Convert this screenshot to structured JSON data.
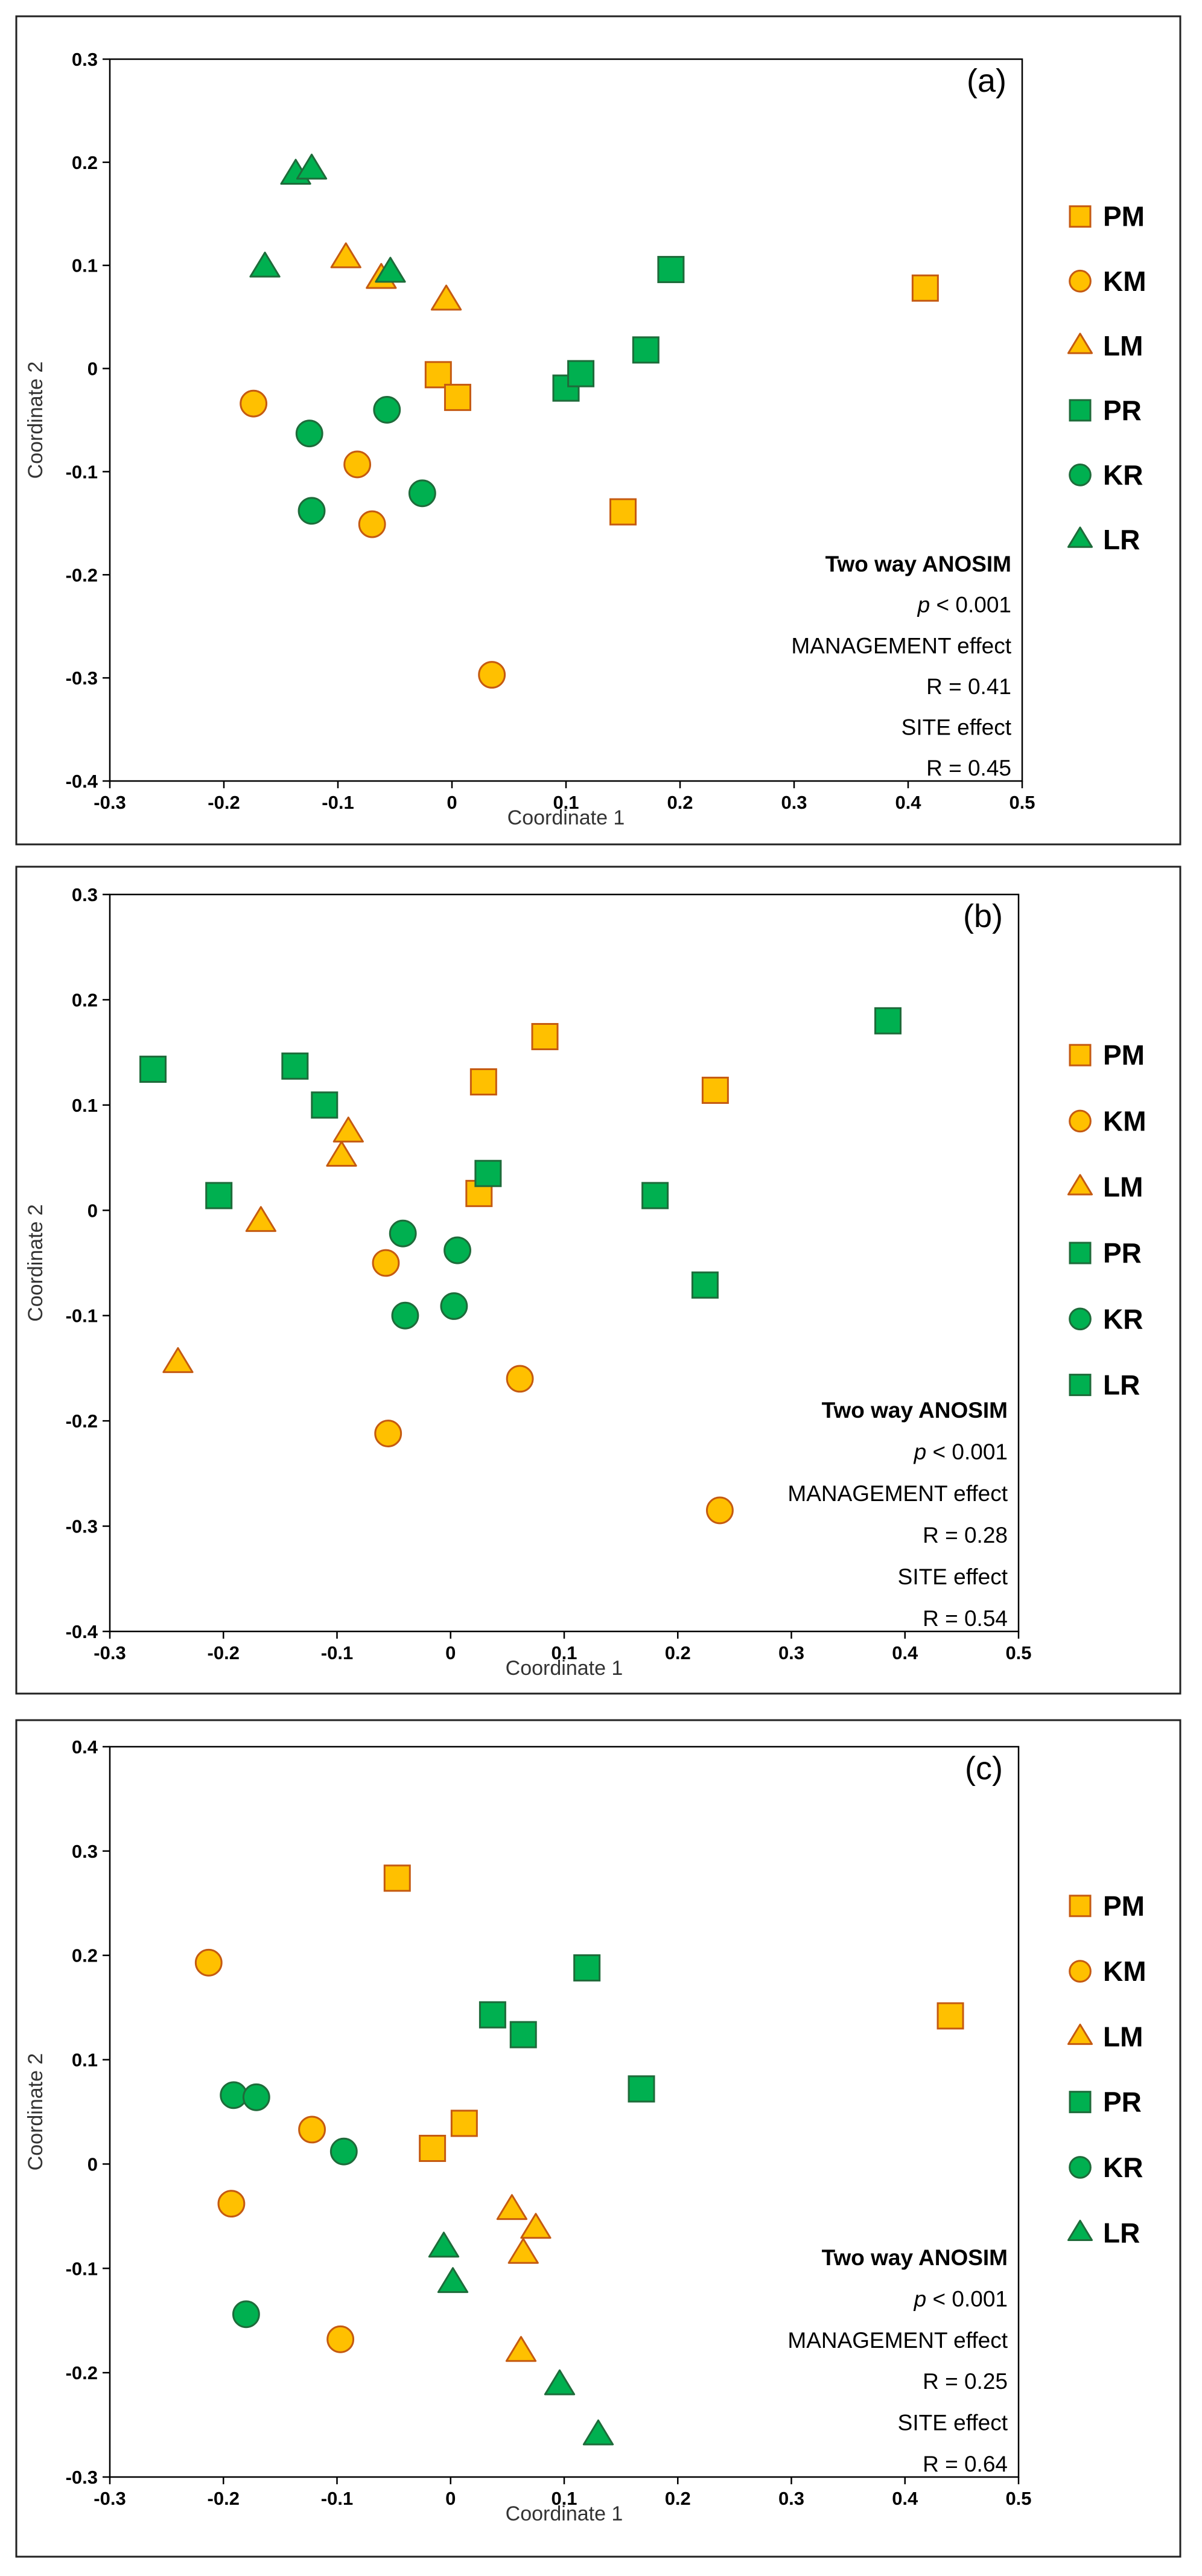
{
  "style": {
    "orange_fill": "#FFC000",
    "orange_stroke": "#C55A11",
    "green_fill": "#00B050",
    "green_stroke": "#1E6B3A"
  },
  "chart_data": [
    {
      "type": "scatter",
      "panel": "(a)",
      "xlabel": "Coordinate 1",
      "ylabel": "Coordinate 2",
      "xlim": [
        -0.3,
        0.5
      ],
      "ylim": [
        -0.4,
        0.3
      ],
      "xticks": [
        -0.3,
        -0.2,
        -0.1,
        0,
        0.1,
        0.2,
        0.3,
        0.4,
        0.5
      ],
      "xtick_labels": [
        "-0.3",
        "-0.2",
        "-0.1",
        "0",
        "0.1",
        "0.2",
        "0.3",
        "0.4",
        "0.5"
      ],
      "yticks": [
        -0.4,
        -0.3,
        -0.2,
        -0.1,
        0,
        0.1,
        0.2,
        0.3
      ],
      "ytick_labels": [
        "-0.4",
        "-0.3",
        "-0.2",
        "-0.1",
        "0",
        "0.1",
        "0.2",
        "0.3"
      ],
      "grid": false,
      "legend_position": "right",
      "annotation": {
        "title": "Two way ANOSIM",
        "p_symbol": "p",
        "p_rest": " < 0.001",
        "line3": "MANAGEMENT effect",
        "line4": "R = 0.41",
        "line5": "SITE effect",
        "line6": "R = 0.45"
      },
      "series": [
        {
          "name": "PM",
          "marker": "square",
          "color": "orange",
          "points": [
            [
              -0.012,
              -0.006
            ],
            [
              0.005,
              -0.028
            ],
            [
              0.15,
              -0.139
            ],
            [
              0.415,
              0.078
            ]
          ]
        },
        {
          "name": "KM",
          "marker": "circle",
          "color": "orange",
          "points": [
            [
              -0.174,
              -0.034
            ],
            [
              -0.083,
              -0.093
            ],
            [
              -0.07,
              -0.151
            ],
            [
              0.035,
              -0.297
            ]
          ]
        },
        {
          "name": "LM",
          "marker": "triangle",
          "color": "orange",
          "points": [
            [
              -0.093,
              0.107
            ],
            [
              -0.062,
              0.087
            ],
            [
              -0.005,
              0.066
            ]
          ]
        },
        {
          "name": "PR",
          "marker": "square",
          "color": "green",
          "points": [
            [
              0.1,
              -0.019
            ],
            [
              0.113,
              -0.005
            ],
            [
              0.17,
              0.018
            ],
            [
              0.192,
              0.096
            ]
          ]
        },
        {
          "name": "KR",
          "marker": "circle",
          "color": "green",
          "points": [
            [
              -0.125,
              -0.063
            ],
            [
              -0.123,
              -0.138
            ],
            [
              -0.057,
              -0.04
            ],
            [
              -0.026,
              -0.121
            ]
          ]
        },
        {
          "name": "LR",
          "marker": "triangle",
          "color": "green",
          "points": [
            [
              -0.164,
              0.098
            ],
            [
              -0.137,
              0.188
            ],
            [
              -0.123,
              0.193
            ],
            [
              -0.054,
              0.093
            ]
          ]
        }
      ]
    },
    {
      "type": "scatter",
      "panel": "(b)",
      "xlabel": "Coordinate 1",
      "ylabel": "Coordinate 2",
      "xlim": [
        -0.3,
        0.5
      ],
      "ylim": [
        -0.4,
        0.3
      ],
      "xticks": [
        -0.3,
        -0.2,
        -0.1,
        0,
        0.1,
        0.2,
        0.3,
        0.4,
        0.5
      ],
      "xtick_labels": [
        "-0.3",
        "-0.2",
        "-0.1",
        "0",
        "0.1",
        "0.2",
        "0.3",
        "0.4",
        "0.5"
      ],
      "yticks": [
        -0.4,
        -0.3,
        -0.2,
        -0.1,
        0,
        0.1,
        0.2,
        0.3
      ],
      "ytick_labels": [
        "-0.4",
        "-0.3",
        "-0.2",
        "-0.1",
        "0",
        "0.1",
        "0.2",
        "0.3"
      ],
      "grid": false,
      "legend_position": "right",
      "annotation": {
        "title": "Two way ANOSIM",
        "p_symbol": "p",
        "p_rest": " < 0.001",
        "line3": "MANAGEMENT effect",
        "line4": "R = 0.28",
        "line5": "SITE effect",
        "line6": "R = 0.54"
      },
      "series": [
        {
          "name": "PM",
          "marker": "square",
          "color": "orange",
          "points": [
            [
              0.025,
              0.016
            ],
            [
              0.029,
              0.122
            ],
            [
              0.083,
              0.165
            ],
            [
              0.233,
              0.114
            ]
          ]
        },
        {
          "name": "KM",
          "marker": "circle",
          "color": "orange",
          "points": [
            [
              -0.057,
              -0.05
            ],
            [
              -0.055,
              -0.212
            ],
            [
              0.061,
              -0.16
            ],
            [
              0.237,
              -0.285
            ]
          ]
        },
        {
          "name": "LM",
          "marker": "triangle",
          "color": "orange",
          "points": [
            [
              -0.24,
              -0.145
            ],
            [
              -0.167,
              -0.011
            ],
            [
              -0.096,
              0.051
            ],
            [
              -0.09,
              0.074
            ]
          ]
        },
        {
          "name": "PR",
          "marker": "square",
          "color": "green",
          "points": [
            [
              -0.262,
              0.134
            ],
            [
              -0.204,
              0.014
            ],
            [
              -0.137,
              0.137
            ],
            [
              -0.111,
              0.1
            ],
            [
              0.033,
              0.035
            ],
            [
              0.18,
              0.014
            ],
            [
              0.224,
              -0.071
            ],
            [
              0.385,
              0.18
            ]
          ]
        },
        {
          "name": "KR",
          "marker": "circle",
          "color": "green",
          "points": [
            [
              -0.042,
              -0.022
            ],
            [
              -0.04,
              -0.1
            ],
            [
              0.003,
              -0.091
            ],
            [
              0.006,
              -0.038
            ]
          ]
        },
        {
          "name": "LR",
          "marker": "square",
          "color": "green",
          "points": []
        }
      ]
    },
    {
      "type": "scatter",
      "panel": "(c)",
      "xlabel": "Coordinate 1",
      "ylabel": "Coordinate 2",
      "xlim": [
        -0.3,
        0.5
      ],
      "ylim": [
        -0.3,
        0.4
      ],
      "xticks": [
        -0.3,
        -0.2,
        -0.1,
        0,
        0.1,
        0.2,
        0.3,
        0.4,
        0.5
      ],
      "xtick_labels": [
        "-0.3",
        "-0.2",
        "-0.1",
        "0",
        "0.1",
        "0.2",
        "0.3",
        "0.4",
        "0.5"
      ],
      "yticks": [
        -0.3,
        -0.2,
        -0.1,
        0,
        0.1,
        0.2,
        0.3,
        0.4
      ],
      "ytick_labels": [
        "-0.3",
        "-0.2",
        "-0.1",
        "0",
        "0.1",
        "0.2",
        "0.3",
        "0.4"
      ],
      "grid": false,
      "legend_position": "right",
      "annotation": {
        "title": "Two way ANOSIM",
        "p_symbol": "p",
        "p_rest": " < 0.001",
        "line3": "MANAGEMENT effect",
        "line4": "R = 0.25",
        "line5": "SITE effect",
        "line6": "R = 0.64"
      },
      "series": [
        {
          "name": "PM",
          "marker": "square",
          "color": "orange",
          "points": [
            [
              -0.047,
              0.274
            ],
            [
              -0.016,
              0.015
            ],
            [
              0.012,
              0.039
            ],
            [
              0.44,
              0.142
            ]
          ]
        },
        {
          "name": "KM",
          "marker": "circle",
          "color": "orange",
          "points": [
            [
              -0.213,
              0.193
            ],
            [
              -0.193,
              -0.038
            ],
            [
              -0.122,
              0.033
            ],
            [
              -0.097,
              -0.168
            ]
          ]
        },
        {
          "name": "LM",
          "marker": "triangle",
          "color": "orange",
          "points": [
            [
              0.054,
              -0.044
            ],
            [
              0.062,
              -0.18
            ],
            [
              0.064,
              -0.086
            ],
            [
              0.075,
              -0.062
            ]
          ]
        },
        {
          "name": "PR",
          "marker": "square",
          "color": "green",
          "points": [
            [
              0.037,
              0.143
            ],
            [
              0.064,
              0.124
            ],
            [
              0.12,
              0.188
            ],
            [
              0.168,
              0.072
            ]
          ]
        },
        {
          "name": "KR",
          "marker": "circle",
          "color": "green",
          "points": [
            [
              -0.191,
              0.066
            ],
            [
              -0.18,
              -0.144
            ],
            [
              -0.171,
              0.064
            ],
            [
              -0.094,
              0.012
            ]
          ]
        },
        {
          "name": "LR",
          "marker": "triangle",
          "color": "green",
          "points": [
            [
              -0.006,
              -0.08
            ],
            [
              0.002,
              -0.114
            ],
            [
              0.096,
              -0.212
            ],
            [
              0.13,
              -0.26
            ]
          ]
        }
      ]
    }
  ]
}
